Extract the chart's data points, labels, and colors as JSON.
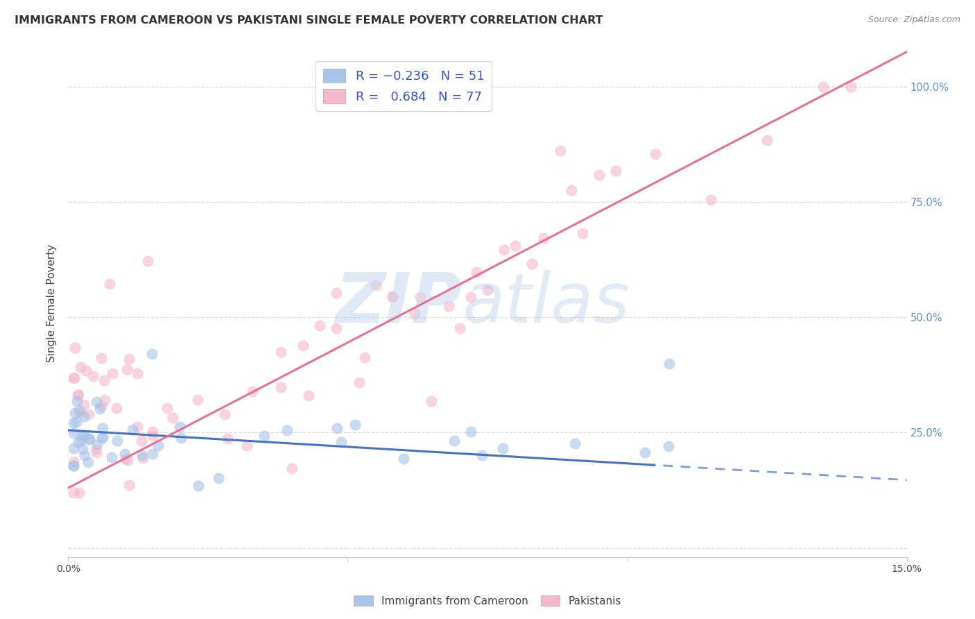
{
  "title": "IMMIGRANTS FROM CAMEROON VS PAKISTANI SINGLE FEMALE POVERTY CORRELATION CHART",
  "source": "Source: ZipAtlas.com",
  "ylabel": "Single Female Poverty",
  "yticks": [
    0.0,
    0.25,
    0.5,
    0.75,
    1.0
  ],
  "ytick_labels": [
    "",
    "25.0%",
    "50.0%",
    "75.0%",
    "100.0%"
  ],
  "xlim": [
    0.0,
    0.15
  ],
  "ylim": [
    -0.02,
    1.08
  ],
  "color_blue": "#a8c4e8",
  "color_pink": "#f5b8c8",
  "line_blue": "#4472c4",
  "line_pink": "#e87090",
  "legend_label1": "Immigrants from Cameroon",
  "legend_label2": "Pakistanis",
  "grid_color": "#d8d8d8",
  "background_color": "#ffffff",
  "blue_line_intercept": 0.255,
  "blue_line_slope": -0.72,
  "pink_line_intercept": 0.13,
  "pink_line_slope": 6.3
}
